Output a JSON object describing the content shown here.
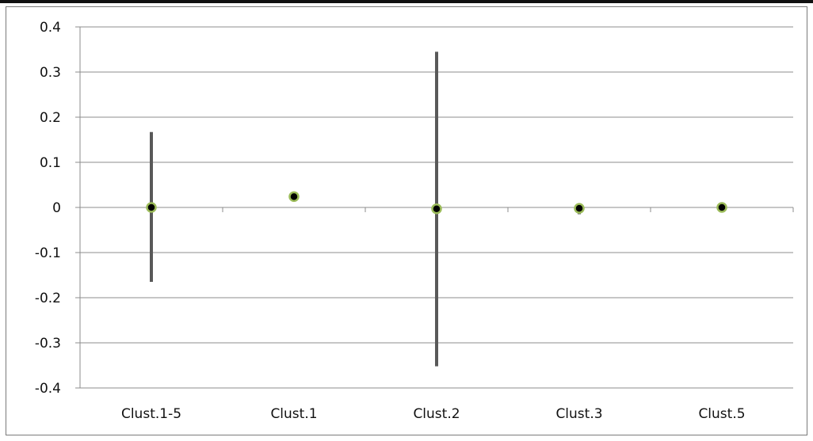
{
  "chart_data": {
    "type": "scatter",
    "title": "",
    "xlabel": "",
    "ylabel": "",
    "ylim": [
      -0.4,
      0.4
    ],
    "yticks": [
      0.4,
      0.3,
      0.2,
      0.1,
      0,
      -0.1,
      -0.2,
      -0.3,
      -0.4
    ],
    "ytick_labels": [
      "0.4",
      "0.3",
      "0.2",
      "0.1",
      "0",
      "-0.1",
      "-0.2",
      "-0.3",
      "-0.4"
    ],
    "grid": true,
    "legend": "none",
    "categories": [
      "Clust.1-5",
      "Clust.1",
      "Clust.2",
      "Clust.3",
      "Clust.5"
    ],
    "series": [
      {
        "values": [
          0.0,
          0.024,
          -0.003,
          -0.002,
          0.0
        ],
        "error_low": [
          -0.165,
          0.013,
          -0.352,
          -0.015,
          -0.002
        ],
        "error_high": [
          0.167,
          0.027,
          0.345,
          0.005,
          0.002
        ]
      }
    ],
    "colors": {
      "marker_fill": "#000000",
      "marker_edge": "#9bbb59",
      "error_bar": "#595959",
      "grid": "#8c8c8c",
      "axis": "#8c8c8c"
    }
  }
}
